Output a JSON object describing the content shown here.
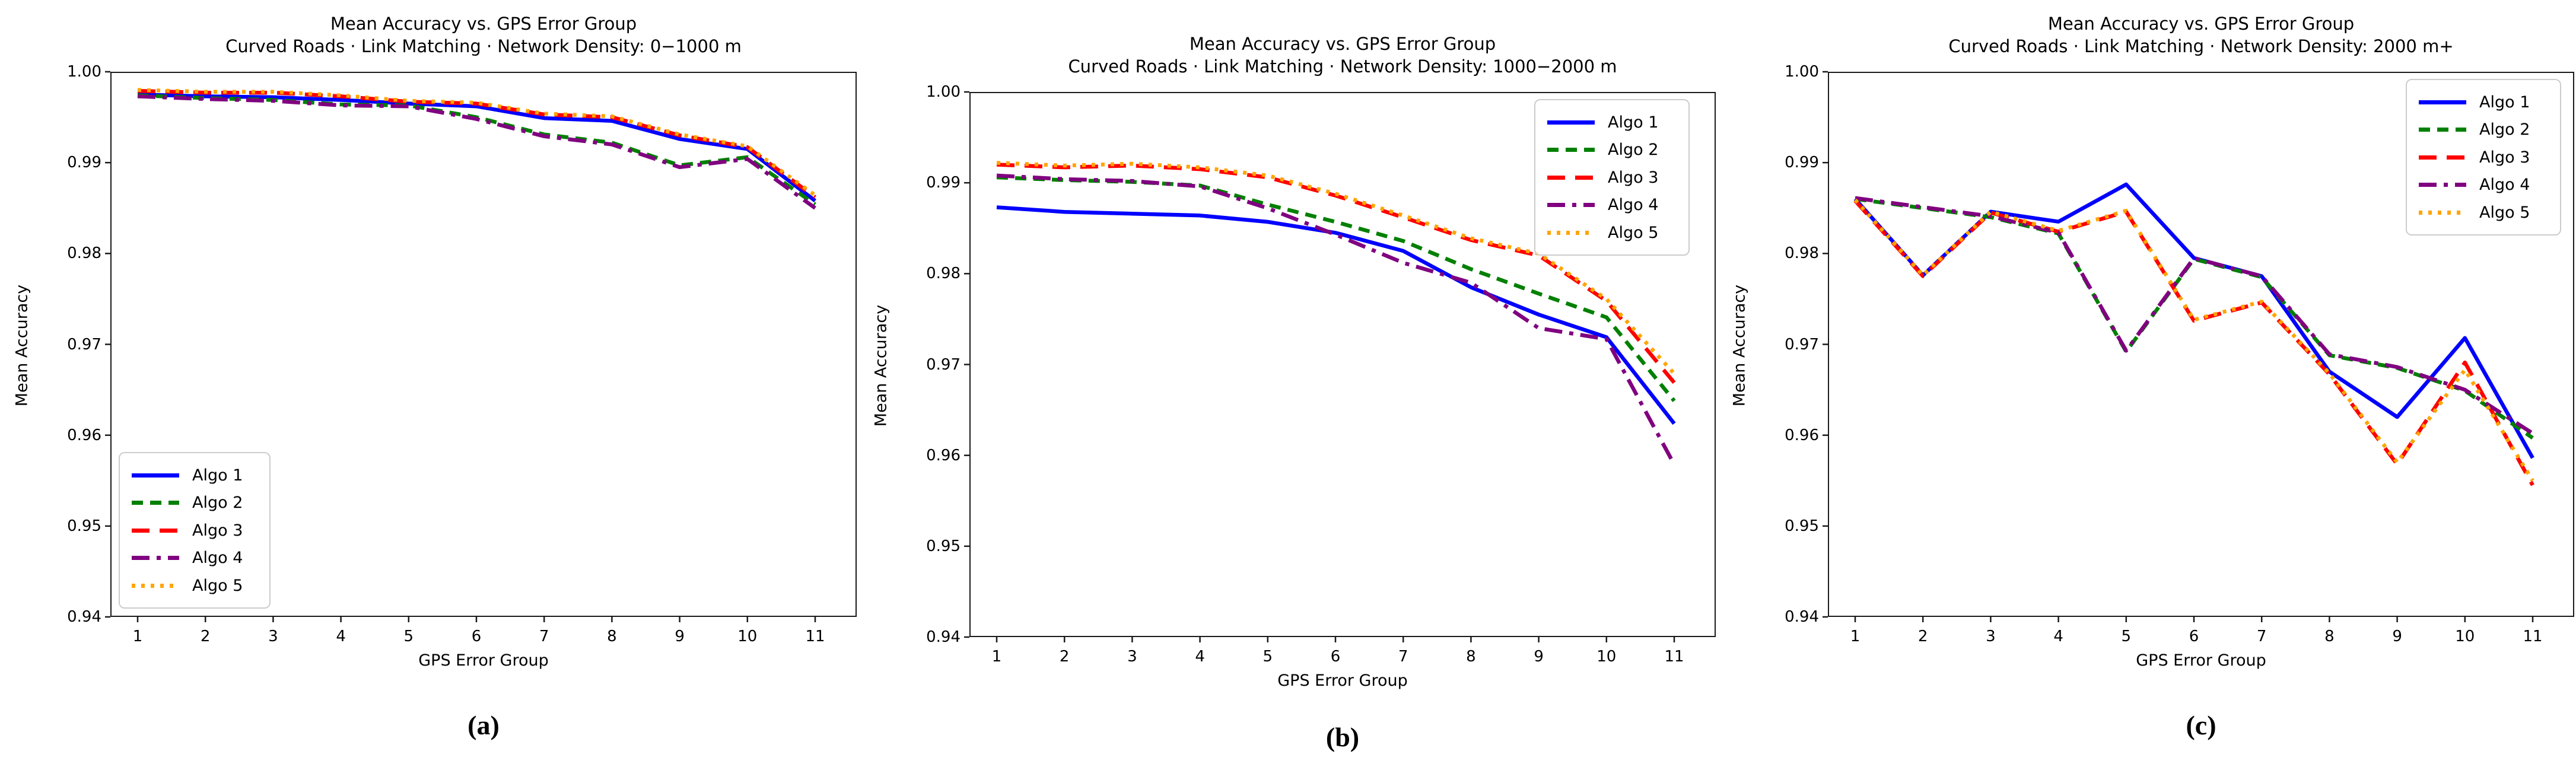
{
  "figure": {
    "ylabel": "Mean Accuracy",
    "xlabel": "GPS Error Group",
    "ytick_labels": [
      "1.00",
      "0.99",
      "0.98",
      "0.97",
      "0.96",
      "0.95",
      "0.94"
    ],
    "xtick_labels": [
      "1",
      "2",
      "3",
      "4",
      "5",
      "6",
      "7",
      "8",
      "9",
      "10",
      "11"
    ]
  },
  "panels": [
    {
      "caption": "(a)",
      "legend_position": "lower-left"
    },
    {
      "caption": "(b)",
      "legend_position": "upper-right"
    },
    {
      "caption": "(c)",
      "legend_position": "upper-right"
    }
  ],
  "chart_data": [
    {
      "type": "line",
      "title": "Mean Accuracy vs. GPS Error Group",
      "subtitle": "Curved Roads · Link Matching · Network Density: 0−1000 m",
      "xlabel": "GPS Error Group",
      "ylabel": "Mean Accuracy",
      "x": [
        1,
        2,
        3,
        4,
        5,
        6,
        7,
        8,
        9,
        10,
        11
      ],
      "ylim": [
        0.94,
        1.0
      ],
      "yticks": [
        1.0,
        0.99,
        0.98,
        0.97,
        0.96,
        0.95,
        0.94
      ],
      "grid": false,
      "legend_position": "lower-left",
      "series": [
        {
          "name": "Algo 1",
          "color": "#0000ff",
          "style": "solid",
          "values": [
            0.9975,
            0.9973,
            0.9972,
            0.9969,
            0.9965,
            0.9962,
            0.9949,
            0.9946,
            0.9926,
            0.9915,
            0.9858
          ]
        },
        {
          "name": "Algo 2",
          "color": "#008000",
          "style": "dashed",
          "values": [
            0.9974,
            0.9971,
            0.9969,
            0.9964,
            0.9963,
            0.995,
            0.9931,
            0.9922,
            0.9897,
            0.9906,
            0.9854
          ]
        },
        {
          "name": "Algo 3",
          "color": "#ff0000",
          "style": "long-dashed",
          "values": [
            0.9979,
            0.9977,
            0.9977,
            0.9973,
            0.9967,
            0.9965,
            0.9953,
            0.995,
            0.993,
            0.9917,
            0.9862
          ]
        },
        {
          "name": "Algo 4",
          "color": "#800080",
          "style": "dash-dot",
          "values": [
            0.9973,
            0.997,
            0.9968,
            0.9963,
            0.9962,
            0.9948,
            0.9929,
            0.992,
            0.9895,
            0.9904,
            0.985
          ]
        },
        {
          "name": "Algo 5",
          "color": "#ffa500",
          "style": "dotted",
          "values": [
            0.998,
            0.9978,
            0.9978,
            0.9974,
            0.9968,
            0.9966,
            0.9954,
            0.9951,
            0.9931,
            0.9918,
            0.9864
          ]
        }
      ]
    },
    {
      "type": "line",
      "title": "Mean Accuracy vs. GPS Error Group",
      "subtitle": "Curved Roads · Link Matching · Network Density: 1000−2000 m",
      "xlabel": "GPS Error Group",
      "ylabel": "Mean Accuracy",
      "x": [
        1,
        2,
        3,
        4,
        5,
        6,
        7,
        8,
        9,
        10,
        11
      ],
      "ylim": [
        0.94,
        1.0
      ],
      "yticks": [
        1.0,
        0.99,
        0.98,
        0.97,
        0.96,
        0.95,
        0.94
      ],
      "grid": false,
      "legend_position": "upper-right",
      "series": [
        {
          "name": "Algo 1",
          "color": "#0000ff",
          "style": "solid",
          "values": [
            0.9873,
            0.9868,
            0.9866,
            0.9864,
            0.9857,
            0.9845,
            0.9825,
            0.9785,
            0.9755,
            0.973,
            0.9635
          ]
        },
        {
          "name": "Algo 2",
          "color": "#008000",
          "style": "dashed",
          "values": [
            0.9906,
            0.9903,
            0.9901,
            0.9897,
            0.9876,
            0.9857,
            0.9836,
            0.9805,
            0.9778,
            0.9752,
            0.966
          ]
        },
        {
          "name": "Algo 3",
          "color": "#ff0000",
          "style": "long-dashed",
          "values": [
            0.992,
            0.9917,
            0.9919,
            0.9915,
            0.9906,
            0.9886,
            0.9862,
            0.9837,
            0.982,
            0.977,
            0.968
          ]
        },
        {
          "name": "Algo 4",
          "color": "#800080",
          "style": "dash-dot",
          "values": [
            0.9908,
            0.9904,
            0.9902,
            0.9896,
            0.9872,
            0.9843,
            0.9812,
            0.979,
            0.974,
            0.9728,
            0.959
          ]
        },
        {
          "name": "Algo 5",
          "color": "#ffa500",
          "style": "dotted",
          "values": [
            0.9922,
            0.9919,
            0.9921,
            0.9917,
            0.9908,
            0.9888,
            0.9864,
            0.9839,
            0.9822,
            0.9772,
            0.969
          ]
        }
      ]
    },
    {
      "type": "line",
      "title": "Mean Accuracy vs. GPS Error Group",
      "subtitle": "Curved Roads · Link Matching · Network Density: 2000 m+",
      "xlabel": "GPS Error Group",
      "ylabel": "Mean Accuracy",
      "x": [
        1,
        2,
        3,
        4,
        5,
        6,
        7,
        8,
        9,
        10,
        11
      ],
      "ylim": [
        0.94,
        1.0
      ],
      "yticks": [
        1.0,
        0.99,
        0.98,
        0.97,
        0.96,
        0.95,
        0.94
      ],
      "grid": false,
      "legend_position": "upper-right",
      "series": [
        {
          "name": "Algo 1",
          "color": "#0000ff",
          "style": "solid",
          "values": [
            0.986,
            0.9776,
            0.9846,
            0.9835,
            0.9876,
            0.9795,
            0.9775,
            0.967,
            0.962,
            0.9707,
            0.9575
          ]
        },
        {
          "name": "Algo 2",
          "color": "#008000",
          "style": "dashed",
          "values": [
            0.986,
            0.985,
            0.984,
            0.9822,
            0.9692,
            0.9794,
            0.9774,
            0.9688,
            0.9674,
            0.9649,
            0.9597
          ]
        },
        {
          "name": "Algo 3",
          "color": "#ff0000",
          "style": "long-dashed",
          "values": [
            0.9858,
            0.9775,
            0.9845,
            0.9824,
            0.9846,
            0.9726,
            0.9746,
            0.9667,
            0.9568,
            0.968,
            0.9545
          ]
        },
        {
          "name": "Algo 4",
          "color": "#800080",
          "style": "dash-dot",
          "values": [
            0.9861,
            0.9851,
            0.9841,
            0.9823,
            0.9693,
            0.9795,
            0.9775,
            0.9689,
            0.9675,
            0.965,
            0.9602
          ]
        },
        {
          "name": "Algo 5",
          "color": "#ffa500",
          "style": "dotted",
          "values": [
            0.9859,
            0.9776,
            0.9846,
            0.9825,
            0.9847,
            0.9727,
            0.9747,
            0.9668,
            0.957,
            0.9672,
            0.955
          ]
        }
      ]
    }
  ]
}
